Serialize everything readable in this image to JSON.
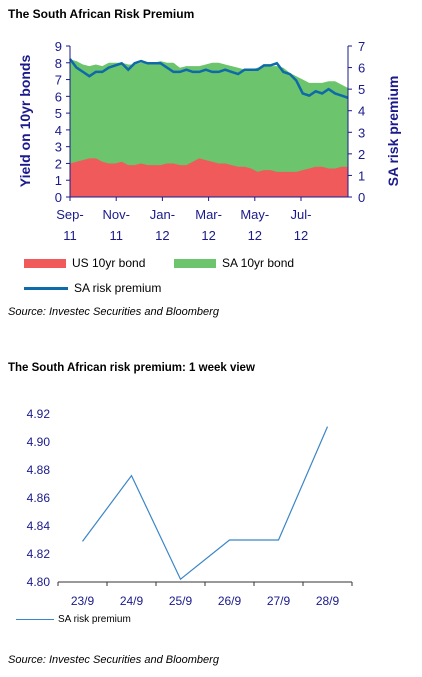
{
  "chart_data": [
    {
      "type": "area",
      "title": "The South African Risk Premium",
      "ylabel": "Yield on 10yr bonds",
      "y2label": "SA risk premium",
      "ylim": [
        0,
        9
      ],
      "y2lim": [
        0,
        7
      ],
      "yticks": [
        "0",
        "1",
        "2",
        "3",
        "4",
        "5",
        "6",
        "7",
        "8",
        "9"
      ],
      "y2ticks": [
        "0",
        "1",
        "2",
        "3",
        "4",
        "5",
        "6",
        "7"
      ],
      "xticks": [
        {
          "line1": "Sep-",
          "line2": "11"
        },
        {
          "line1": "Nov-",
          "line2": "11"
        },
        {
          "line1": "Jan-",
          "line2": "12"
        },
        {
          "line1": "Mar-",
          "line2": "12"
        },
        {
          "line1": "May-",
          "line2": "12"
        },
        {
          "line1": "Jul-",
          "line2": "12"
        }
      ],
      "series": [
        {
          "name": "US 10yr bond",
          "axis": "left",
          "values": [
            2.0,
            2.1,
            2.2,
            2.3,
            2.3,
            2.1,
            2.0,
            2.0,
            2.1,
            1.9,
            1.9,
            2.0,
            1.9,
            1.9,
            1.9,
            2.0,
            2.0,
            1.9,
            1.9,
            2.1,
            2.3,
            2.2,
            2.1,
            2.0,
            2.0,
            1.9,
            1.8,
            1.8,
            1.7,
            1.5,
            1.6,
            1.6,
            1.5,
            1.5,
            1.5,
            1.5,
            1.6,
            1.7,
            1.8,
            1.8,
            1.7,
            1.7,
            1.8,
            1.8
          ]
        },
        {
          "name": "SA 10yr bond",
          "axis": "left",
          "values": [
            8.2,
            8.1,
            7.9,
            7.8,
            7.9,
            7.8,
            8.0,
            8.0,
            8.0,
            7.9,
            7.9,
            8.0,
            8.0,
            8.0,
            8.1,
            8.0,
            8.0,
            7.7,
            7.8,
            7.8,
            7.8,
            7.9,
            8.0,
            8.0,
            7.9,
            7.8,
            7.7,
            7.6,
            7.6,
            7.7,
            7.8,
            7.8,
            7.8,
            7.7,
            7.4,
            7.2,
            7.0,
            6.8,
            6.8,
            6.8,
            6.9,
            6.9,
            6.7,
            6.5
          ]
        },
        {
          "name": "SA risk premium",
          "axis": "right",
          "values": [
            6.4,
            6.0,
            5.8,
            5.6,
            5.8,
            5.8,
            6.0,
            6.1,
            6.2,
            5.9,
            6.2,
            6.3,
            6.2,
            6.2,
            6.2,
            6.0,
            5.8,
            5.8,
            5.9,
            5.8,
            5.8,
            5.9,
            5.8,
            5.8,
            5.9,
            5.8,
            5.7,
            5.9,
            5.9,
            5.9,
            6.1,
            6.1,
            6.2,
            5.8,
            5.7,
            5.4,
            4.8,
            4.7,
            4.9,
            4.8,
            5.0,
            4.8,
            4.7,
            4.6
          ]
        }
      ],
      "colors": {
        "us": "#f05a5a",
        "sa": "#6cc46c",
        "risk": "#0e6aa8"
      },
      "source": "Source: Investec Securities and Bloomberg"
    },
    {
      "type": "line",
      "title": "The South African risk premium: 1 week view",
      "categories": [
        "23/9",
        "24/9",
        "25/9",
        "26/9",
        "27/9",
        "28/9"
      ],
      "ylim": [
        4.8,
        4.92
      ],
      "yticks": [
        "4.80",
        "4.82",
        "4.84",
        "4.86",
        "4.88",
        "4.90",
        "4.92"
      ],
      "series": [
        {
          "name": "SA risk premium",
          "values": [
            4.829,
            4.876,
            4.802,
            4.83,
            4.83,
            4.911
          ]
        }
      ],
      "colors": {
        "line": "#3a86c8"
      },
      "source": "Source: Investec Securities and Bloomberg"
    }
  ]
}
